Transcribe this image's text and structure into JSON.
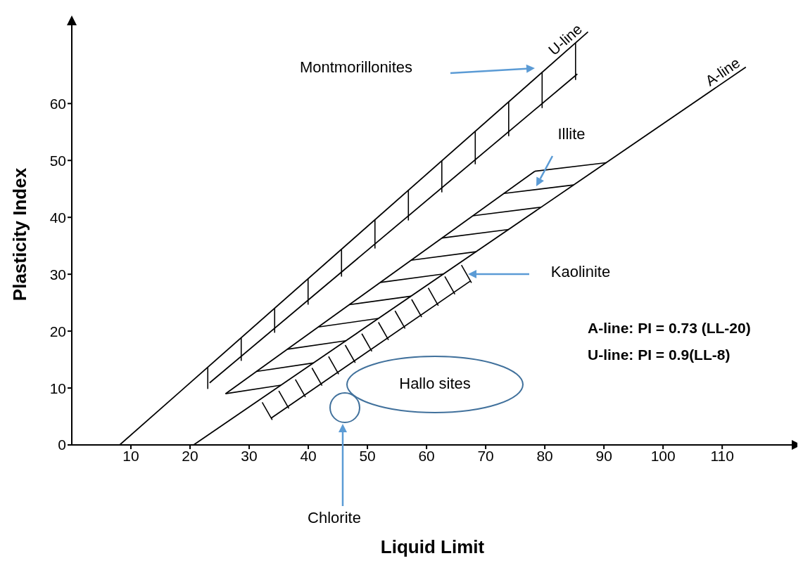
{
  "chart_data": {
    "type": "line",
    "xlabel": "Liquid Limit",
    "ylabel": "Plasticity Index",
    "xlim": [
      0,
      122
    ],
    "ylim": [
      0,
      74
    ],
    "xticks": [
      10,
      20,
      30,
      40,
      50,
      60,
      70,
      80,
      90,
      100,
      110
    ],
    "yticks": [
      0,
      10,
      20,
      30,
      40,
      50,
      60
    ],
    "grid": false,
    "legend": false,
    "marker": "none",
    "line_style": "solid",
    "series": [
      {
        "name": "U-line",
        "color": "#000000",
        "x": [
          8.1,
          87.3
        ],
        "values": [
          0,
          72.6
        ]
      },
      {
        "name": "A-line",
        "color": "#000000",
        "x": [
          20.6,
          114.0
        ],
        "values": [
          0,
          66.4
        ]
      },
      {
        "color": "#000000",
        "x": [
          23.3,
          85.5
        ],
        "values": [
          10.9,
          65.2
        ]
      },
      {
        "color": "#000000",
        "x": [
          26.0,
          78.3
        ],
        "values": [
          9.0,
          48.1
        ]
      },
      {
        "color": "#000000",
        "x": [
          33.7,
          67.4
        ],
        "values": [
          4.7,
          28.8
        ]
      }
    ],
    "annotations": [
      "Montmorillonites",
      "Illite",
      "Kaolinite",
      "Hallo sites",
      "Chlorite",
      "A-line: PI = 0.73 (LL-20)",
      "U-line: PI = 0.9(LL-8)"
    ]
  }
}
